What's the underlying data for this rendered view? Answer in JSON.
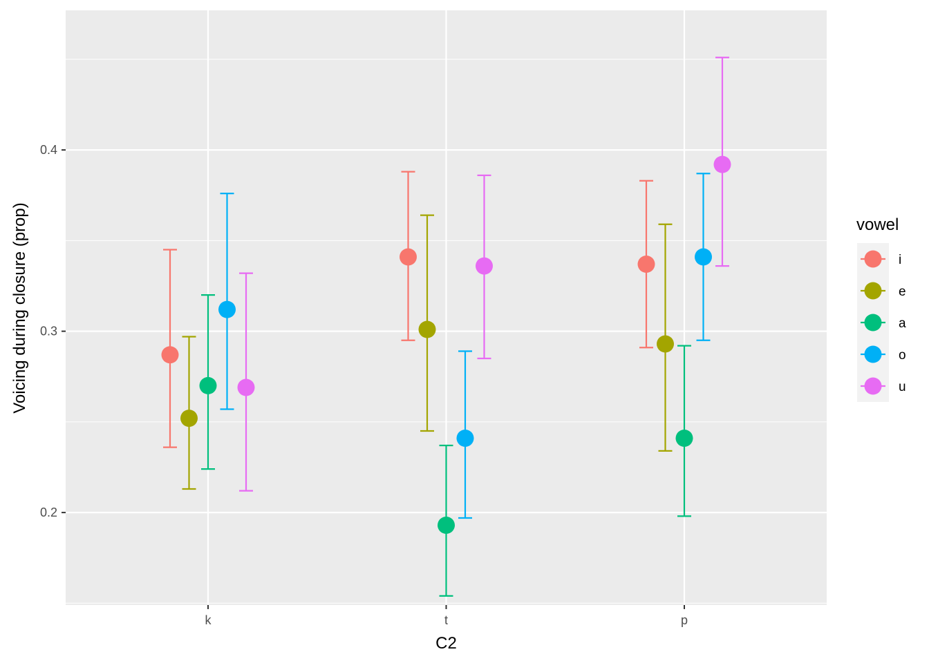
{
  "chart_data": {
    "type": "scatter",
    "title": "",
    "xlabel": "C2",
    "ylabel": "Voicing during closure (prop)",
    "categories": [
      "k",
      "t",
      "p"
    ],
    "ylim": [
      0.149,
      0.477
    ],
    "yticks": [
      0.2,
      0.3,
      0.4
    ],
    "ytick_labels": [
      "0.2",
      "0.3",
      "0.4"
    ],
    "grid": true,
    "legend": {
      "title": "vowel",
      "position": "right"
    },
    "series": [
      {
        "name": "i",
        "color": "#F8766D",
        "points": [
          {
            "x": "k",
            "y": 0.287,
            "ymin": 0.236,
            "ymax": 0.345
          },
          {
            "x": "t",
            "y": 0.341,
            "ymin": 0.295,
            "ymax": 0.388
          },
          {
            "x": "p",
            "y": 0.337,
            "ymin": 0.291,
            "ymax": 0.383
          }
        ]
      },
      {
        "name": "e",
        "color": "#A3A500",
        "points": [
          {
            "x": "k",
            "y": 0.252,
            "ymin": 0.213,
            "ymax": 0.297
          },
          {
            "x": "t",
            "y": 0.301,
            "ymin": 0.245,
            "ymax": 0.364
          },
          {
            "x": "p",
            "y": 0.293,
            "ymin": 0.234,
            "ymax": 0.359
          }
        ]
      },
      {
        "name": "a",
        "color": "#00BF7D",
        "points": [
          {
            "x": "k",
            "y": 0.27,
            "ymin": 0.224,
            "ymax": 0.32
          },
          {
            "x": "t",
            "y": 0.193,
            "ymin": 0.154,
            "ymax": 0.237
          },
          {
            "x": "p",
            "y": 0.241,
            "ymin": 0.198,
            "ymax": 0.292
          }
        ]
      },
      {
        "name": "o",
        "color": "#00B0F6",
        "points": [
          {
            "x": "k",
            "y": 0.312,
            "ymin": 0.257,
            "ymax": 0.376
          },
          {
            "x": "t",
            "y": 0.241,
            "ymin": 0.197,
            "ymax": 0.289
          },
          {
            "x": "p",
            "y": 0.341,
            "ymin": 0.295,
            "ymax": 0.387
          }
        ]
      },
      {
        "name": "u",
        "color": "#E76BF3",
        "points": [
          {
            "x": "k",
            "y": 0.269,
            "ymin": 0.212,
            "ymax": 0.332
          },
          {
            "x": "t",
            "y": 0.336,
            "ymin": 0.285,
            "ymax": 0.386
          },
          {
            "x": "p",
            "y": 0.392,
            "ymin": 0.336,
            "ymax": 0.451
          }
        ]
      }
    ]
  }
}
